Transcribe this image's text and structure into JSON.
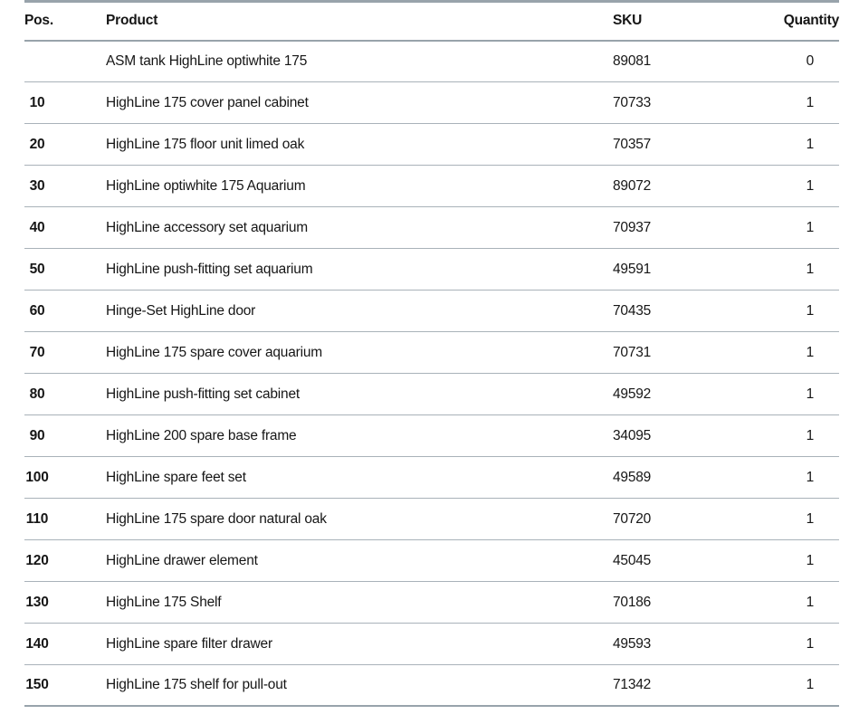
{
  "colors": {
    "accent_border": "#98a3ab",
    "row_border": "#a9b2b9",
    "text": "#161616",
    "background": "#ffffff"
  },
  "table": {
    "columns": [
      {
        "key": "pos",
        "label": "Pos."
      },
      {
        "key": "product",
        "label": "Product"
      },
      {
        "key": "sku",
        "label": "SKU"
      },
      {
        "key": "quantity",
        "label": "Quantity"
      }
    ],
    "rows": [
      {
        "pos": "",
        "product": "ASM tank HighLine optiwhite 175",
        "sku": "89081",
        "quantity": "0"
      },
      {
        "pos": "10",
        "product": "HighLine 175 cover panel cabinet",
        "sku": "70733",
        "quantity": "1"
      },
      {
        "pos": "20",
        "product": "HighLine 175 floor unit limed oak",
        "sku": "70357",
        "quantity": "1"
      },
      {
        "pos": "30",
        "product": "HighLine optiwhite 175 Aquarium",
        "sku": "89072",
        "quantity": "1"
      },
      {
        "pos": "40",
        "product": "HighLine accessory set aquarium",
        "sku": "70937",
        "quantity": "1"
      },
      {
        "pos": "50",
        "product": "HighLine push-fitting set aquarium",
        "sku": "49591",
        "quantity": "1"
      },
      {
        "pos": "60",
        "product": "Hinge-Set HighLine door",
        "sku": "70435",
        "quantity": "1"
      },
      {
        "pos": "70",
        "product": "HighLine 175 spare cover aquarium",
        "sku": "70731",
        "quantity": "1"
      },
      {
        "pos": "80",
        "product": "HighLine push-fitting set cabinet",
        "sku": "49592",
        "quantity": "1"
      },
      {
        "pos": "90",
        "product": "HighLine 200 spare base frame",
        "sku": "34095",
        "quantity": "1"
      },
      {
        "pos": "100",
        "product": "HighLine spare feet set",
        "sku": "49589",
        "quantity": "1"
      },
      {
        "pos": "110",
        "product": "HighLine 175 spare door natural oak",
        "sku": "70720",
        "quantity": "1"
      },
      {
        "pos": "120",
        "product": "HighLine drawer element",
        "sku": "45045",
        "quantity": "1"
      },
      {
        "pos": "130",
        "product": "HighLine 175 Shelf",
        "sku": "70186",
        "quantity": "1"
      },
      {
        "pos": "140",
        "product": "HighLine spare filter drawer",
        "sku": "49593",
        "quantity": "1"
      },
      {
        "pos": "150",
        "product": "HighLine 175 shelf for pull-out",
        "sku": "71342",
        "quantity": "1"
      }
    ]
  }
}
